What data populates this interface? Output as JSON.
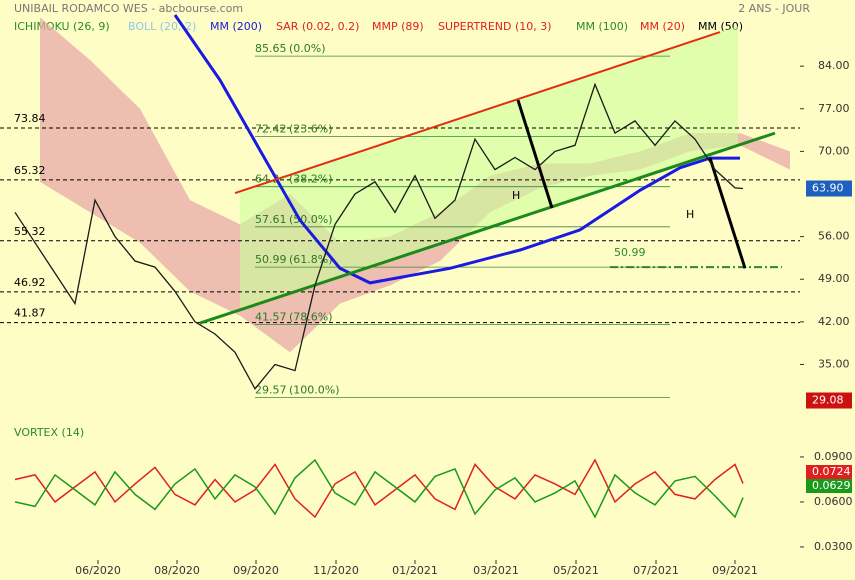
{
  "chart_data": [
    {
      "type": "line",
      "title": "UNIBAIL RODAMCO WES - abcbourse.com",
      "period": "2 ANS - JOUR",
      "legend": [
        {
          "text": "ICHIMOKU (26, 9)",
          "color": "#2a8a2a"
        },
        {
          "text": "BOLL (20, 2)",
          "color": "#8fc8e8"
        },
        {
          "text": "MM (200)",
          "color": "#1a1ae0"
        },
        {
          "text": "SAR (0.02, 0.2)",
          "color": "#e02020"
        },
        {
          "text": "MMP (89)",
          "color": "#e02020"
        },
        {
          "text": "SUPERTREND (10, 3)",
          "color": "#e02020"
        },
        {
          "text": "MM (100)",
          "color": "#2a8a2a"
        },
        {
          "text": "MM (20)",
          "color": "#e02020"
        },
        {
          "text": "MM (50)",
          "color": "#000000"
        }
      ],
      "xlim": [
        0,
        800
      ],
      "xticks": [
        {
          "value": 98,
          "label": "06/2020"
        },
        {
          "value": 177,
          "label": "08/2020"
        },
        {
          "value": 256,
          "label": "09/2020"
        },
        {
          "value": 336,
          "label": "11/2020"
        },
        {
          "value": 415,
          "label": "01/2021"
        },
        {
          "value": 496,
          "label": "03/2021"
        },
        {
          "value": 576,
          "label": "05/2021"
        },
        {
          "value": 656,
          "label": "07/2021"
        },
        {
          "value": 735,
          "label": "09/2021"
        }
      ],
      "ylim": [
        26.7,
        92.4
      ],
      "yticks": [
        {
          "value": 84,
          "label": "84.00"
        },
        {
          "value": 77,
          "label": "77.00"
        },
        {
          "value": 70,
          "label": "70.00"
        },
        {
          "value": 56,
          "label": "56.00"
        },
        {
          "value": 49,
          "label": "49.00"
        },
        {
          "value": 42,
          "label": "42.00"
        },
        {
          "value": 35,
          "label": "35.00"
        }
      ],
      "x": [
        15,
        35,
        55,
        75,
        95,
        115,
        135,
        155,
        175,
        195,
        215,
        235,
        255,
        275,
        295,
        315,
        335,
        355,
        375,
        395,
        415,
        435,
        455,
        475,
        495,
        515,
        535,
        555,
        575,
        595,
        615,
        635,
        655,
        675,
        695,
        715,
        735,
        743
      ],
      "series": [
        {
          "color": "#1a1a1a",
          "values": [
            60,
            55,
            50,
            45,
            62,
            56,
            52,
            51,
            47,
            42,
            40,
            37,
            31,
            35,
            34,
            48,
            58,
            63,
            65,
            60,
            66,
            59,
            62,
            72,
            67,
            69,
            67,
            70,
            71,
            81,
            73,
            75,
            71,
            75,
            72,
            67,
            64,
            63.9
          ],
          "value_labels": [
            null,
            null,
            null,
            null,
            null,
            null,
            null,
            null,
            null,
            null,
            null,
            null,
            null,
            null,
            null,
            null,
            null,
            null,
            null,
            null,
            null,
            null,
            null,
            null,
            null,
            null,
            null,
            null,
            null,
            null,
            null,
            null,
            null,
            null,
            null,
            null,
            null,
            "63.90"
          ]
        }
      ],
      "ma_200": {
        "color": "#1a1ae0",
        "x": [
          175,
          220,
          260,
          300,
          340,
          370,
          450,
          520,
          580,
          640,
          680,
          710,
          740
        ],
        "values": [
          92.4,
          81.7,
          70.2,
          58.7,
          50.8,
          48.4,
          50.8,
          53.8,
          57.1,
          63.6,
          67.3,
          68.9,
          68.9
        ]
      },
      "cloud": {
        "color": "#e8a8a8",
        "x": [
          40,
          90,
          140,
          190,
          240,
          290,
          340,
          390,
          440,
          490,
          540,
          590,
          640,
          690,
          740,
          790
        ],
        "upper": [
          92,
          85,
          77,
          62,
          58,
          63,
          55,
          56,
          60,
          66,
          68,
          68,
          70,
          73,
          73,
          70
        ],
        "lower": [
          65,
          60,
          55,
          47,
          43,
          37,
          45,
          48,
          52,
          60,
          64,
          66,
          67,
          70,
          71,
          67
        ]
      },
      "low": {
        "value": 29.08,
        "label": "29.08"
      },
      "levels": [
        {
          "value": 73.84,
          "label": "73.84"
        },
        {
          "value": 65.32,
          "label": "65.32"
        },
        {
          "value": 55.32,
          "label": "55.32"
        },
        {
          "value": 46.92,
          "label": "46.92"
        },
        {
          "value": 41.87,
          "label": "41.87"
        }
      ],
      "fibonacci": [
        {
          "value": 85.65,
          "label": "85.65",
          "pct": "(0.0%)"
        },
        {
          "value": 72.42,
          "label": "72.42",
          "pct": "(23.6%)"
        },
        {
          "value": 64.2,
          "label": "64.2",
          "pct": "(38.2%)"
        },
        {
          "value": 57.61,
          "label": "57.61",
          "pct": "(50.0%)"
        },
        {
          "value": 50.99,
          "label": "50.99",
          "pct": "(61.8%)"
        },
        {
          "value": 41.57,
          "label": "41.57",
          "pct": "(78.6%)"
        },
        {
          "value": 29.57,
          "label": "29.57",
          "pct": "(100.0%)"
        }
      ],
      "trendlines": [
        {
          "color": "#e03010",
          "x": [
            235,
            720
          ],
          "y": [
            63.15,
            89.6
          ]
        },
        {
          "color": "#1a8a1a",
          "x": [
            200,
            775
          ],
          "y": [
            41.8,
            73.0
          ]
        },
        {
          "color": "#000000",
          "x": [
            518,
            552
          ],
          "y": [
            78.4,
            60.7
          ]
        },
        {
          "color": "#000000",
          "x": [
            710,
            745
          ],
          "y": [
            68.9,
            50.8
          ]
        }
      ],
      "annotations": [
        "H",
        "H"
      ],
      "target": {
        "value": 50.99,
        "label": "50.99",
        "color": "#2a8a2a"
      }
    },
    {
      "type": "line",
      "title": "VORTEX (14)",
      "ylim": [
        0.0213,
        0.1013
      ],
      "yticks": [
        {
          "value": 0.09,
          "label": "0.0900"
        },
        {
          "value": 0.06,
          "label": "0.0600"
        },
        {
          "value": 0.03,
          "label": "0.0300"
        }
      ],
      "x": [
        15,
        35,
        55,
        75,
        95,
        115,
        135,
        155,
        175,
        195,
        215,
        235,
        255,
        275,
        295,
        315,
        335,
        355,
        375,
        395,
        415,
        435,
        455,
        475,
        495,
        515,
        535,
        555,
        575,
        595,
        615,
        635,
        655,
        675,
        695,
        715,
        735,
        743
      ],
      "series": [
        {
          "color": "#e02020",
          "values": [
            0.075,
            0.078,
            0.06,
            0.07,
            0.08,
            0.06,
            0.072,
            0.083,
            0.065,
            0.058,
            0.075,
            0.06,
            0.068,
            0.085,
            0.062,
            0.05,
            0.072,
            0.08,
            0.058,
            0.068,
            0.078,
            0.062,
            0.055,
            0.085,
            0.07,
            0.062,
            0.078,
            0.072,
            0.065,
            0.088,
            0.06,
            0.072,
            0.08,
            0.065,
            0.062,
            0.075,
            0.085,
            0.0724
          ]
        },
        {
          "color": "#1a9a1a",
          "values": [
            0.06,
            0.057,
            0.078,
            0.068,
            0.058,
            0.08,
            0.065,
            0.055,
            0.072,
            0.082,
            0.062,
            0.078,
            0.07,
            0.052,
            0.076,
            0.088,
            0.066,
            0.058,
            0.08,
            0.07,
            0.06,
            0.077,
            0.082,
            0.052,
            0.068,
            0.076,
            0.06,
            0.066,
            0.074,
            0.05,
            0.078,
            0.066,
            0.058,
            0.074,
            0.077,
            0.064,
            0.05,
            0.0629
          ]
        }
      ]
    }
  ]
}
